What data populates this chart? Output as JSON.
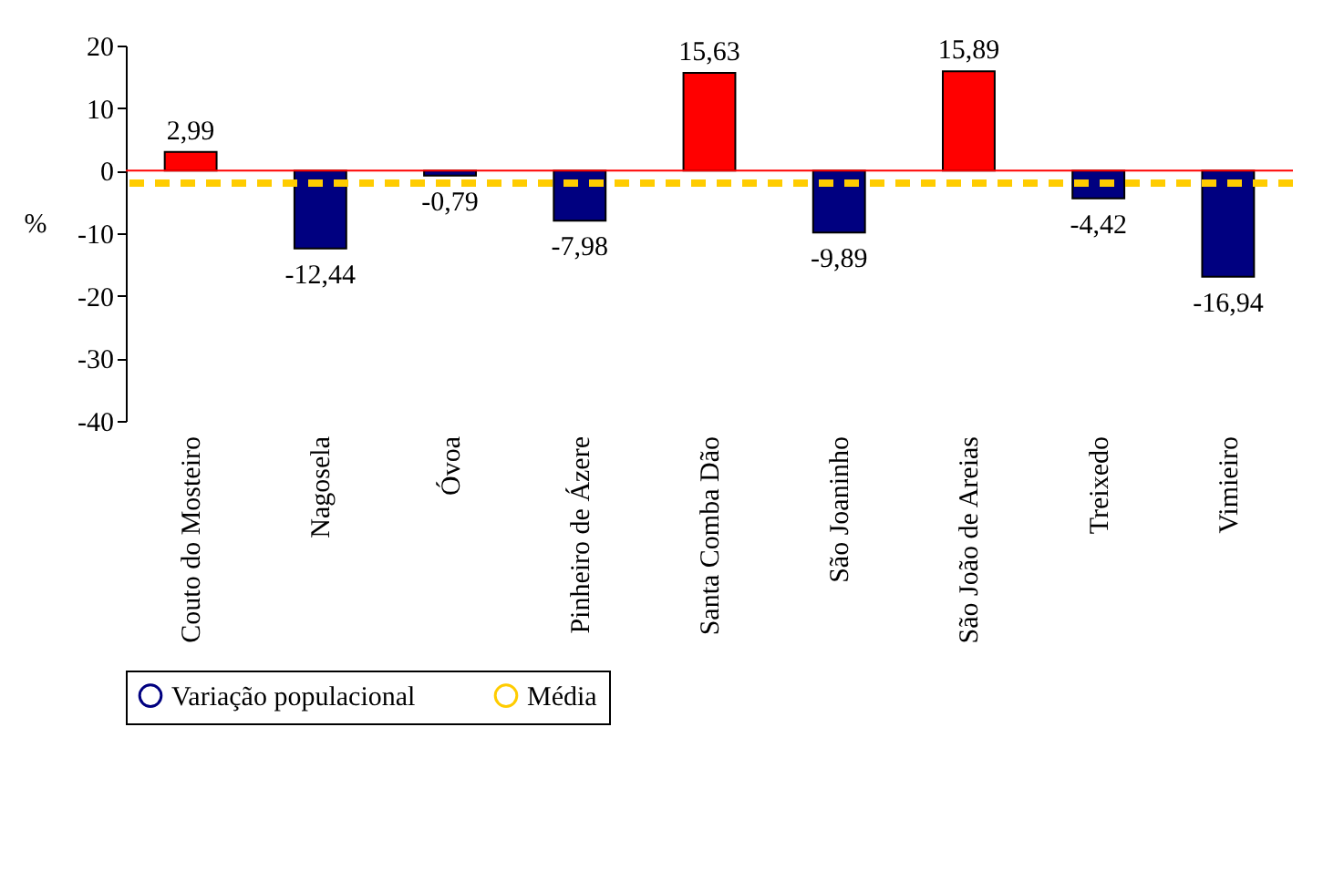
{
  "chart_data": {
    "type": "bar",
    "ylabel": "%",
    "categories": [
      "Couto do Mosteiro",
      "Nagosela",
      "Óvoa",
      "Pinheiro de Ázere",
      "Santa Comba Dão",
      "São Joaninho",
      "São João de Areias",
      "Treixedo",
      "Vimieiro"
    ],
    "series": [
      {
        "name": "Variação populacional",
        "color": "#000080",
        "values": [
          2.99,
          -12.44,
          -0.79,
          -7.98,
          15.63,
          -9.89,
          15.89,
          -4.42,
          -16.94
        ],
        "colors": [
          "#ff0000",
          "#000080",
          "#000080",
          "#000080",
          "#ff0000",
          "#000080",
          "#ff0000",
          "#000080",
          "#000080"
        ],
        "value_labels": [
          "2,99",
          "-12,44",
          "-0,79",
          "-7,98",
          "15,63",
          "-9,89",
          "15,89",
          "-4,42",
          "-16,94"
        ]
      }
    ],
    "ylim": [
      -40,
      20
    ],
    "yticks": [
      -40,
      -30,
      -20,
      -10,
      0,
      10,
      20
    ],
    "ref_lines": [
      {
        "axis": "y",
        "value": 0,
        "color": "#ff0000",
        "line_style": "solid"
      },
      {
        "axis": "y",
        "value": -2,
        "label": "Média",
        "color": "#ffcc00",
        "line_style": "dashed"
      }
    ],
    "grid": false,
    "legend": "bottom"
  }
}
